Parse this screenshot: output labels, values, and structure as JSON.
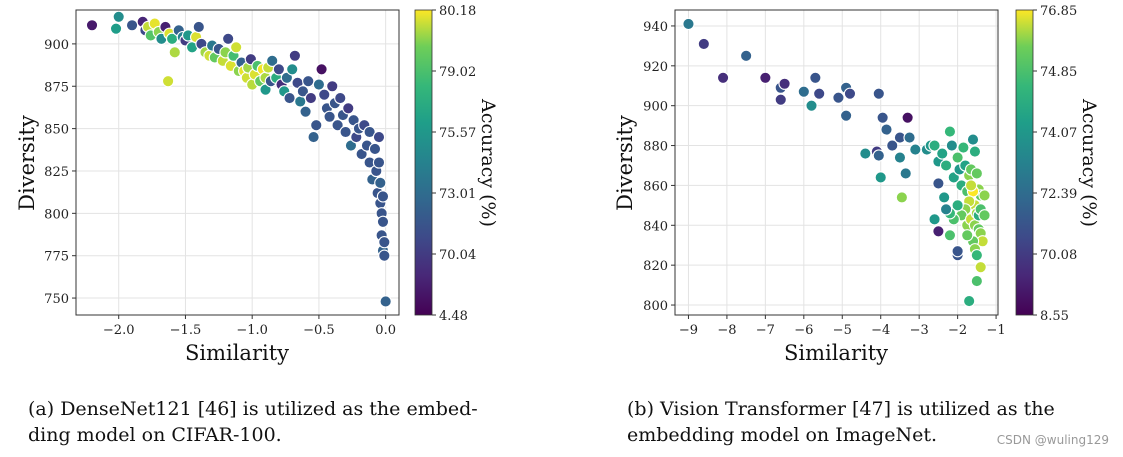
{
  "chart_data": [
    {
      "type": "scatter",
      "xlabel": "Similarity",
      "ylabel": "Diversity",
      "xlim": [
        -2.32,
        0.1
      ],
      "ylim": [
        740,
        920
      ],
      "xticks": [
        -2.0,
        -1.5,
        -1.0,
        -0.5,
        0.0
      ],
      "xtick_labels": [
        "−2.0",
        "−1.5",
        "−1.0",
        "−0.5",
        "0.0"
      ],
      "yticks": [
        750,
        775,
        800,
        825,
        850,
        875,
        900
      ],
      "grid": true,
      "colorbar": {
        "label": "Accuracy (%)",
        "colormap": "viridis",
        "tick_labels": [
          "80.18",
          "79.02",
          "75.57",
          "73.01",
          "70.04",
          "4.48"
        ],
        "top_color": "#fde725",
        "bottom_color": "#440154"
      },
      "points": [
        [
          -2.2,
          911,
          0.08
        ],
        [
          -2.0,
          916,
          0.55
        ],
        [
          -2.02,
          909,
          0.62
        ],
        [
          -1.9,
          911,
          0.3
        ],
        [
          -1.82,
          913,
          0.12
        ],
        [
          -1.8,
          908,
          0.25
        ],
        [
          -1.78,
          910,
          0.95
        ],
        [
          -1.76,
          905,
          0.82
        ],
        [
          -1.73,
          912,
          0.98
        ],
        [
          -1.7,
          907,
          0.9
        ],
        [
          -1.68,
          903,
          0.55
        ],
        [
          -1.65,
          910,
          0.1
        ],
        [
          -1.62,
          906,
          0.97
        ],
        [
          -1.6,
          903,
          0.7
        ],
        [
          -1.58,
          895,
          0.93
        ],
        [
          -1.63,
          878,
          0.96
        ],
        [
          -1.55,
          908,
          0.35
        ],
        [
          -1.52,
          904,
          0.5
        ],
        [
          -1.5,
          902,
          0.2
        ],
        [
          -1.48,
          905,
          0.6
        ],
        [
          -1.45,
          898,
          0.65
        ],
        [
          -1.42,
          904,
          0.97
        ],
        [
          -1.4,
          910,
          0.3
        ],
        [
          -1.38,
          900,
          0.25
        ],
        [
          -1.35,
          895,
          0.92
        ],
        [
          -1.32,
          893,
          0.96
        ],
        [
          -1.3,
          899,
          0.45
        ],
        [
          -1.28,
          892,
          0.85
        ],
        [
          -1.25,
          897,
          0.3
        ],
        [
          -1.22,
          890,
          0.95
        ],
        [
          -1.2,
          895,
          0.9
        ],
        [
          -1.18,
          903,
          0.25
        ],
        [
          -1.16,
          887,
          0.97
        ],
        [
          -1.14,
          893,
          0.78
        ],
        [
          -1.12,
          898,
          0.96
        ],
        [
          -1.1,
          884,
          0.9
        ],
        [
          -1.08,
          889,
          0.35
        ],
        [
          -1.06,
          884,
          0.98
        ],
        [
          -1.04,
          880,
          0.96
        ],
        [
          -1.03,
          886,
          0.92
        ],
        [
          -1.01,
          891,
          0.2
        ],
        [
          -1.0,
          876,
          0.94
        ],
        [
          -0.98,
          882,
          0.97
        ],
        [
          -0.96,
          887,
          0.8
        ],
        [
          -0.94,
          878,
          0.85
        ],
        [
          -0.92,
          885,
          0.99
        ],
        [
          -0.9,
          880,
          0.93
        ],
        [
          -0.9,
          873,
          0.6
        ],
        [
          -0.88,
          886,
          0.95
        ],
        [
          -0.86,
          878,
          0.3
        ],
        [
          -0.85,
          890,
          0.4
        ],
        [
          -0.82,
          880,
          0.7
        ],
        [
          -0.8,
          885,
          0.25
        ],
        [
          -0.78,
          876,
          0.15
        ],
        [
          -0.76,
          872,
          0.6
        ],
        [
          -0.74,
          880,
          0.4
        ],
        [
          -0.72,
          868,
          0.3
        ],
        [
          -0.7,
          885,
          0.55
        ],
        [
          -0.68,
          893,
          0.2
        ],
        [
          -0.66,
          877,
          0.25
        ],
        [
          -0.64,
          866,
          0.45
        ],
        [
          -0.62,
          872,
          0.3
        ],
        [
          -0.6,
          860,
          0.35
        ],
        [
          -0.58,
          878,
          0.3
        ],
        [
          -0.56,
          868,
          0.2
        ],
        [
          -0.54,
          845,
          0.35
        ],
        [
          -0.52,
          852,
          0.3
        ],
        [
          -0.5,
          876,
          0.4
        ],
        [
          -0.48,
          885,
          0.05
        ],
        [
          -0.46,
          870,
          0.25
        ],
        [
          -0.44,
          862,
          0.3
        ],
        [
          -0.42,
          857,
          0.3
        ],
        [
          -0.4,
          875,
          0.2
        ],
        [
          -0.38,
          865,
          0.3
        ],
        [
          -0.36,
          852,
          0.3
        ],
        [
          -0.34,
          868,
          0.25
        ],
        [
          -0.32,
          858,
          0.3
        ],
        [
          -0.3,
          848,
          0.3
        ],
        [
          -0.28,
          862,
          0.2
        ],
        [
          -0.26,
          840,
          0.4
        ],
        [
          -0.24,
          855,
          0.3
        ],
        [
          -0.22,
          845,
          0.25
        ],
        [
          -0.2,
          850,
          0.3
        ],
        [
          -0.18,
          835,
          0.3
        ],
        [
          -0.16,
          852,
          0.25
        ],
        [
          -0.14,
          840,
          0.3
        ],
        [
          -0.12,
          830,
          0.3
        ],
        [
          -0.12,
          848,
          0.3
        ],
        [
          -0.1,
          820,
          0.35
        ],
        [
          -0.08,
          838,
          0.3
        ],
        [
          -0.07,
          825,
          0.3
        ],
        [
          -0.06,
          812,
          0.3
        ],
        [
          -0.05,
          830,
          0.3
        ],
        [
          -0.04,
          806,
          0.3
        ],
        [
          -0.04,
          818,
          0.35
        ],
        [
          -0.03,
          800,
          0.3
        ],
        [
          -0.03,
          787,
          0.3
        ],
        [
          -0.02,
          778,
          0.35
        ],
        [
          -0.02,
          795,
          0.3
        ],
        [
          -0.01,
          775,
          0.3
        ],
        [
          -0.01,
          783,
          0.3
        ],
        [
          0.0,
          748,
          0.35
        ],
        [
          -0.05,
          845,
          0.25
        ],
        [
          -0.02,
          810,
          0.3
        ]
      ]
    },
    {
      "type": "scatter",
      "xlabel": "Similarity",
      "ylabel": "Diversity",
      "xlim": [
        -9.35,
        -0.95
      ],
      "ylim": [
        795,
        948
      ],
      "xticks": [
        -9,
        -8,
        -7,
        -6,
        -5,
        -4,
        -3,
        -2,
        -1
      ],
      "xtick_labels": [
        "−9",
        "−8",
        "−7",
        "−6",
        "−5",
        "−4",
        "−3",
        "−2",
        "−1"
      ],
      "yticks": [
        800,
        820,
        840,
        860,
        880,
        900,
        920,
        940
      ],
      "grid": true,
      "colorbar": {
        "label": "Accuracy (%)",
        "colormap": "viridis",
        "tick_labels": [
          "76.85",
          "74.85",
          "74.07",
          "72.39",
          "70.08",
          "8.55"
        ],
        "top_color": "#fde725",
        "bottom_color": "#440154"
      },
      "points": [
        [
          -9.0,
          941,
          0.45
        ],
        [
          -8.6,
          931,
          0.2
        ],
        [
          -8.1,
          914,
          0.15
        ],
        [
          -7.5,
          925,
          0.35
        ],
        [
          -7.0,
          914,
          0.1
        ],
        [
          -6.6,
          909,
          0.3
        ],
        [
          -6.5,
          911,
          0.15
        ],
        [
          -6.6,
          903,
          0.2
        ],
        [
          -6.0,
          907,
          0.4
        ],
        [
          -5.7,
          914,
          0.3
        ],
        [
          -5.8,
          900,
          0.55
        ],
        [
          -5.6,
          906,
          0.25
        ],
        [
          -5.1,
          904,
          0.3
        ],
        [
          -4.9,
          909,
          0.35
        ],
        [
          -4.8,
          906,
          0.25
        ],
        [
          -4.9,
          895,
          0.35
        ],
        [
          -4.05,
          906,
          0.3
        ],
        [
          -3.95,
          894,
          0.3
        ],
        [
          -3.85,
          888,
          0.35
        ],
        [
          -4.1,
          877,
          0.2
        ],
        [
          -4.05,
          875,
          0.35
        ],
        [
          -4.0,
          864,
          0.6
        ],
        [
          -4.4,
          876,
          0.55
        ],
        [
          -3.7,
          880,
          0.3
        ],
        [
          -3.5,
          884,
          0.3
        ],
        [
          -3.3,
          894,
          0.05
        ],
        [
          -3.25,
          884,
          0.4
        ],
        [
          -3.5,
          874,
          0.5
        ],
        [
          -3.35,
          866,
          0.45
        ],
        [
          -3.1,
          878,
          0.5
        ],
        [
          -3.45,
          854,
          0.9
        ],
        [
          -2.8,
          878,
          0.55
        ],
        [
          -2.7,
          880,
          0.6
        ],
        [
          -2.6,
          880,
          0.7
        ],
        [
          -2.5,
          872,
          0.6
        ],
        [
          -2.4,
          876,
          0.65
        ],
        [
          -2.3,
          870,
          0.7
        ],
        [
          -2.2,
          887,
          0.75
        ],
        [
          -2.15,
          880,
          0.55
        ],
        [
          -2.1,
          864,
          0.65
        ],
        [
          -2.0,
          874,
          0.8
        ],
        [
          -1.95,
          868,
          0.6
        ],
        [
          -1.9,
          860,
          0.7
        ],
        [
          -1.85,
          879,
          0.75
        ],
        [
          -1.8,
          870,
          0.65
        ],
        [
          -1.75,
          857,
          0.8
        ],
        [
          -1.7,
          865,
          0.9
        ],
        [
          -1.65,
          868,
          0.85
        ],
        [
          -1.6,
          883,
          0.55
        ],
        [
          -1.55,
          877,
          0.7
        ],
        [
          -1.5,
          866,
          0.85
        ],
        [
          -1.45,
          858,
          0.9
        ],
        [
          -1.4,
          855,
          0.85
        ],
        [
          -1.55,
          850,
          0.95
        ],
        [
          -1.6,
          857,
          1.0
        ],
        [
          -1.7,
          852,
          0.95
        ],
        [
          -1.8,
          848,
          0.9
        ],
        [
          -1.9,
          845,
          0.85
        ],
        [
          -2.0,
          850,
          0.7
        ],
        [
          -2.1,
          843,
          0.8
        ],
        [
          -2.2,
          846,
          0.75
        ],
        [
          -2.3,
          848,
          0.5
        ],
        [
          -2.35,
          854,
          0.6
        ],
        [
          -2.5,
          861,
          0.3
        ],
        [
          -2.6,
          843,
          0.6
        ],
        [
          -2.5,
          837,
          0.1
        ],
        [
          -2.2,
          835,
          0.8
        ],
        [
          -2.0,
          825,
          0.3
        ],
        [
          -2.0,
          827,
          0.3
        ],
        [
          -1.75,
          840,
          0.9
        ],
        [
          -1.65,
          843,
          0.95
        ],
        [
          -1.55,
          840,
          0.9
        ],
        [
          -1.5,
          846,
          0.92
        ],
        [
          -1.45,
          838,
          0.85
        ],
        [
          -1.4,
          836,
          0.9
        ],
        [
          -1.35,
          832,
          0.95
        ],
        [
          -1.6,
          832,
          0.85
        ],
        [
          -1.55,
          828,
          0.9
        ],
        [
          -1.5,
          825,
          0.75
        ],
        [
          -1.4,
          819,
          0.95
        ],
        [
          -1.5,
          812,
          0.8
        ],
        [
          -1.7,
          802,
          0.7
        ],
        [
          -1.45,
          845,
          0.7
        ],
        [
          -1.4,
          848,
          0.8
        ],
        [
          -1.75,
          835,
          0.85
        ],
        [
          -1.3,
          845,
          0.85
        ],
        [
          -1.3,
          855,
          0.9
        ],
        [
          -1.65,
          860,
          0.95
        ]
      ]
    }
  ],
  "captions": {
    "a_line1": "(a) DenseNet121 [46] is utilized as the embed-",
    "a_line2": "ding model on CIFAR-100.",
    "b_line1": "(b) Vision Transformer [47] is utilized as the",
    "b_line2": "embedding model on ImageNet."
  },
  "watermark": "CSDN @wuling129"
}
